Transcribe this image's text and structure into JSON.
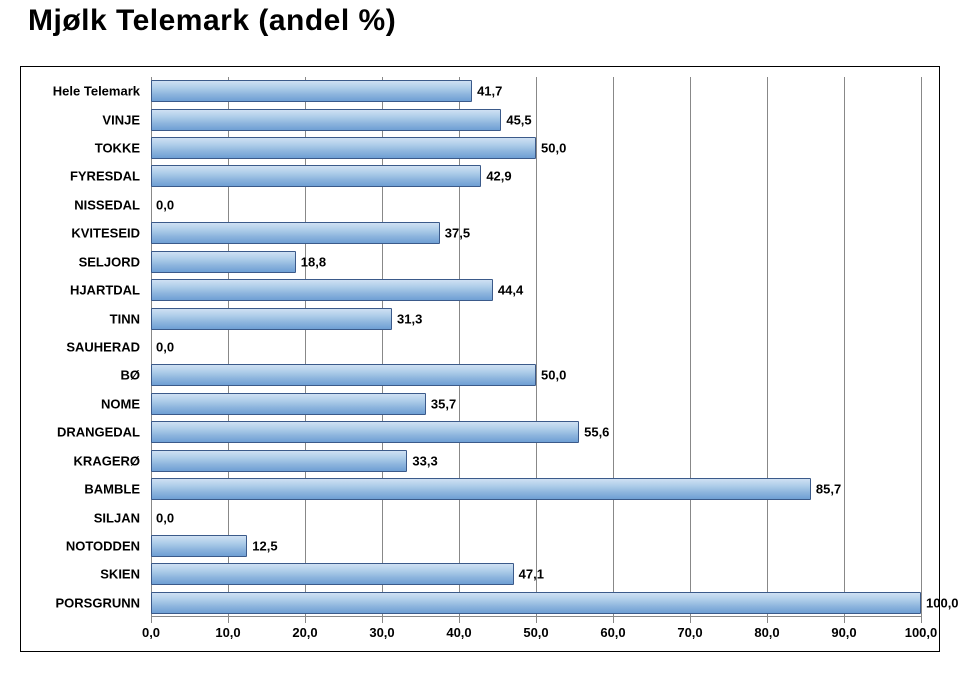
{
  "title": "Mjølk Telemark (andel %)",
  "chart": {
    "type": "bar",
    "orientation": "horizontal",
    "xlim": [
      0.0,
      100.0
    ],
    "xtick_step": 10.0,
    "xticks": [
      "0,0",
      "10,0",
      "20,0",
      "30,0",
      "40,0",
      "50,0",
      "60,0",
      "70,0",
      "80,0",
      "90,0",
      "100,0"
    ],
    "background_color": "#ffffff",
    "frame_border_color": "#000000",
    "grid_color": "#888888",
    "bar_fill_gradient": [
      "#cfe0f3",
      "#aecde9",
      "#8fb6de",
      "#6f9fd4"
    ],
    "bar_border_color": "#3b5a8a",
    "label_fontsize": 13,
    "title_fontsize": 30,
    "title_color": "#000000",
    "label_color": "#000000",
    "rows": [
      {
        "label": "Hele Telemark",
        "value": 41.7,
        "value_label": "41,7"
      },
      {
        "label": "VINJE",
        "value": 45.5,
        "value_label": "45,5"
      },
      {
        "label": "TOKKE",
        "value": 50.0,
        "value_label": "50,0"
      },
      {
        "label": "FYRESDAL",
        "value": 42.9,
        "value_label": "42,9"
      },
      {
        "label": "NISSEDAL",
        "value": 0.0,
        "value_label": "0,0"
      },
      {
        "label": "KVITESEID",
        "value": 37.5,
        "value_label": "37,5"
      },
      {
        "label": "SELJORD",
        "value": 18.8,
        "value_label": "18,8"
      },
      {
        "label": "HJARTDAL",
        "value": 44.4,
        "value_label": "44,4"
      },
      {
        "label": "TINN",
        "value": 31.3,
        "value_label": "31,3"
      },
      {
        "label": "SAUHERAD",
        "value": 0.0,
        "value_label": "0,0"
      },
      {
        "label": "BØ",
        "value": 50.0,
        "value_label": "50,0"
      },
      {
        "label": "NOME",
        "value": 35.7,
        "value_label": "35,7"
      },
      {
        "label": "DRANGEDAL",
        "value": 55.6,
        "value_label": "55,6"
      },
      {
        "label": "KRAGERØ",
        "value": 33.3,
        "value_label": "33,3"
      },
      {
        "label": "BAMBLE",
        "value": 85.7,
        "value_label": "85,7"
      },
      {
        "label": "SILJAN",
        "value": 0.0,
        "value_label": "0,0"
      },
      {
        "label": "NOTODDEN",
        "value": 12.5,
        "value_label": "12,5"
      },
      {
        "label": "SKIEN",
        "value": 47.1,
        "value_label": "47,1"
      },
      {
        "label": "PORSGRUNN",
        "value": 100.0,
        "value_label": "100,0"
      }
    ]
  }
}
